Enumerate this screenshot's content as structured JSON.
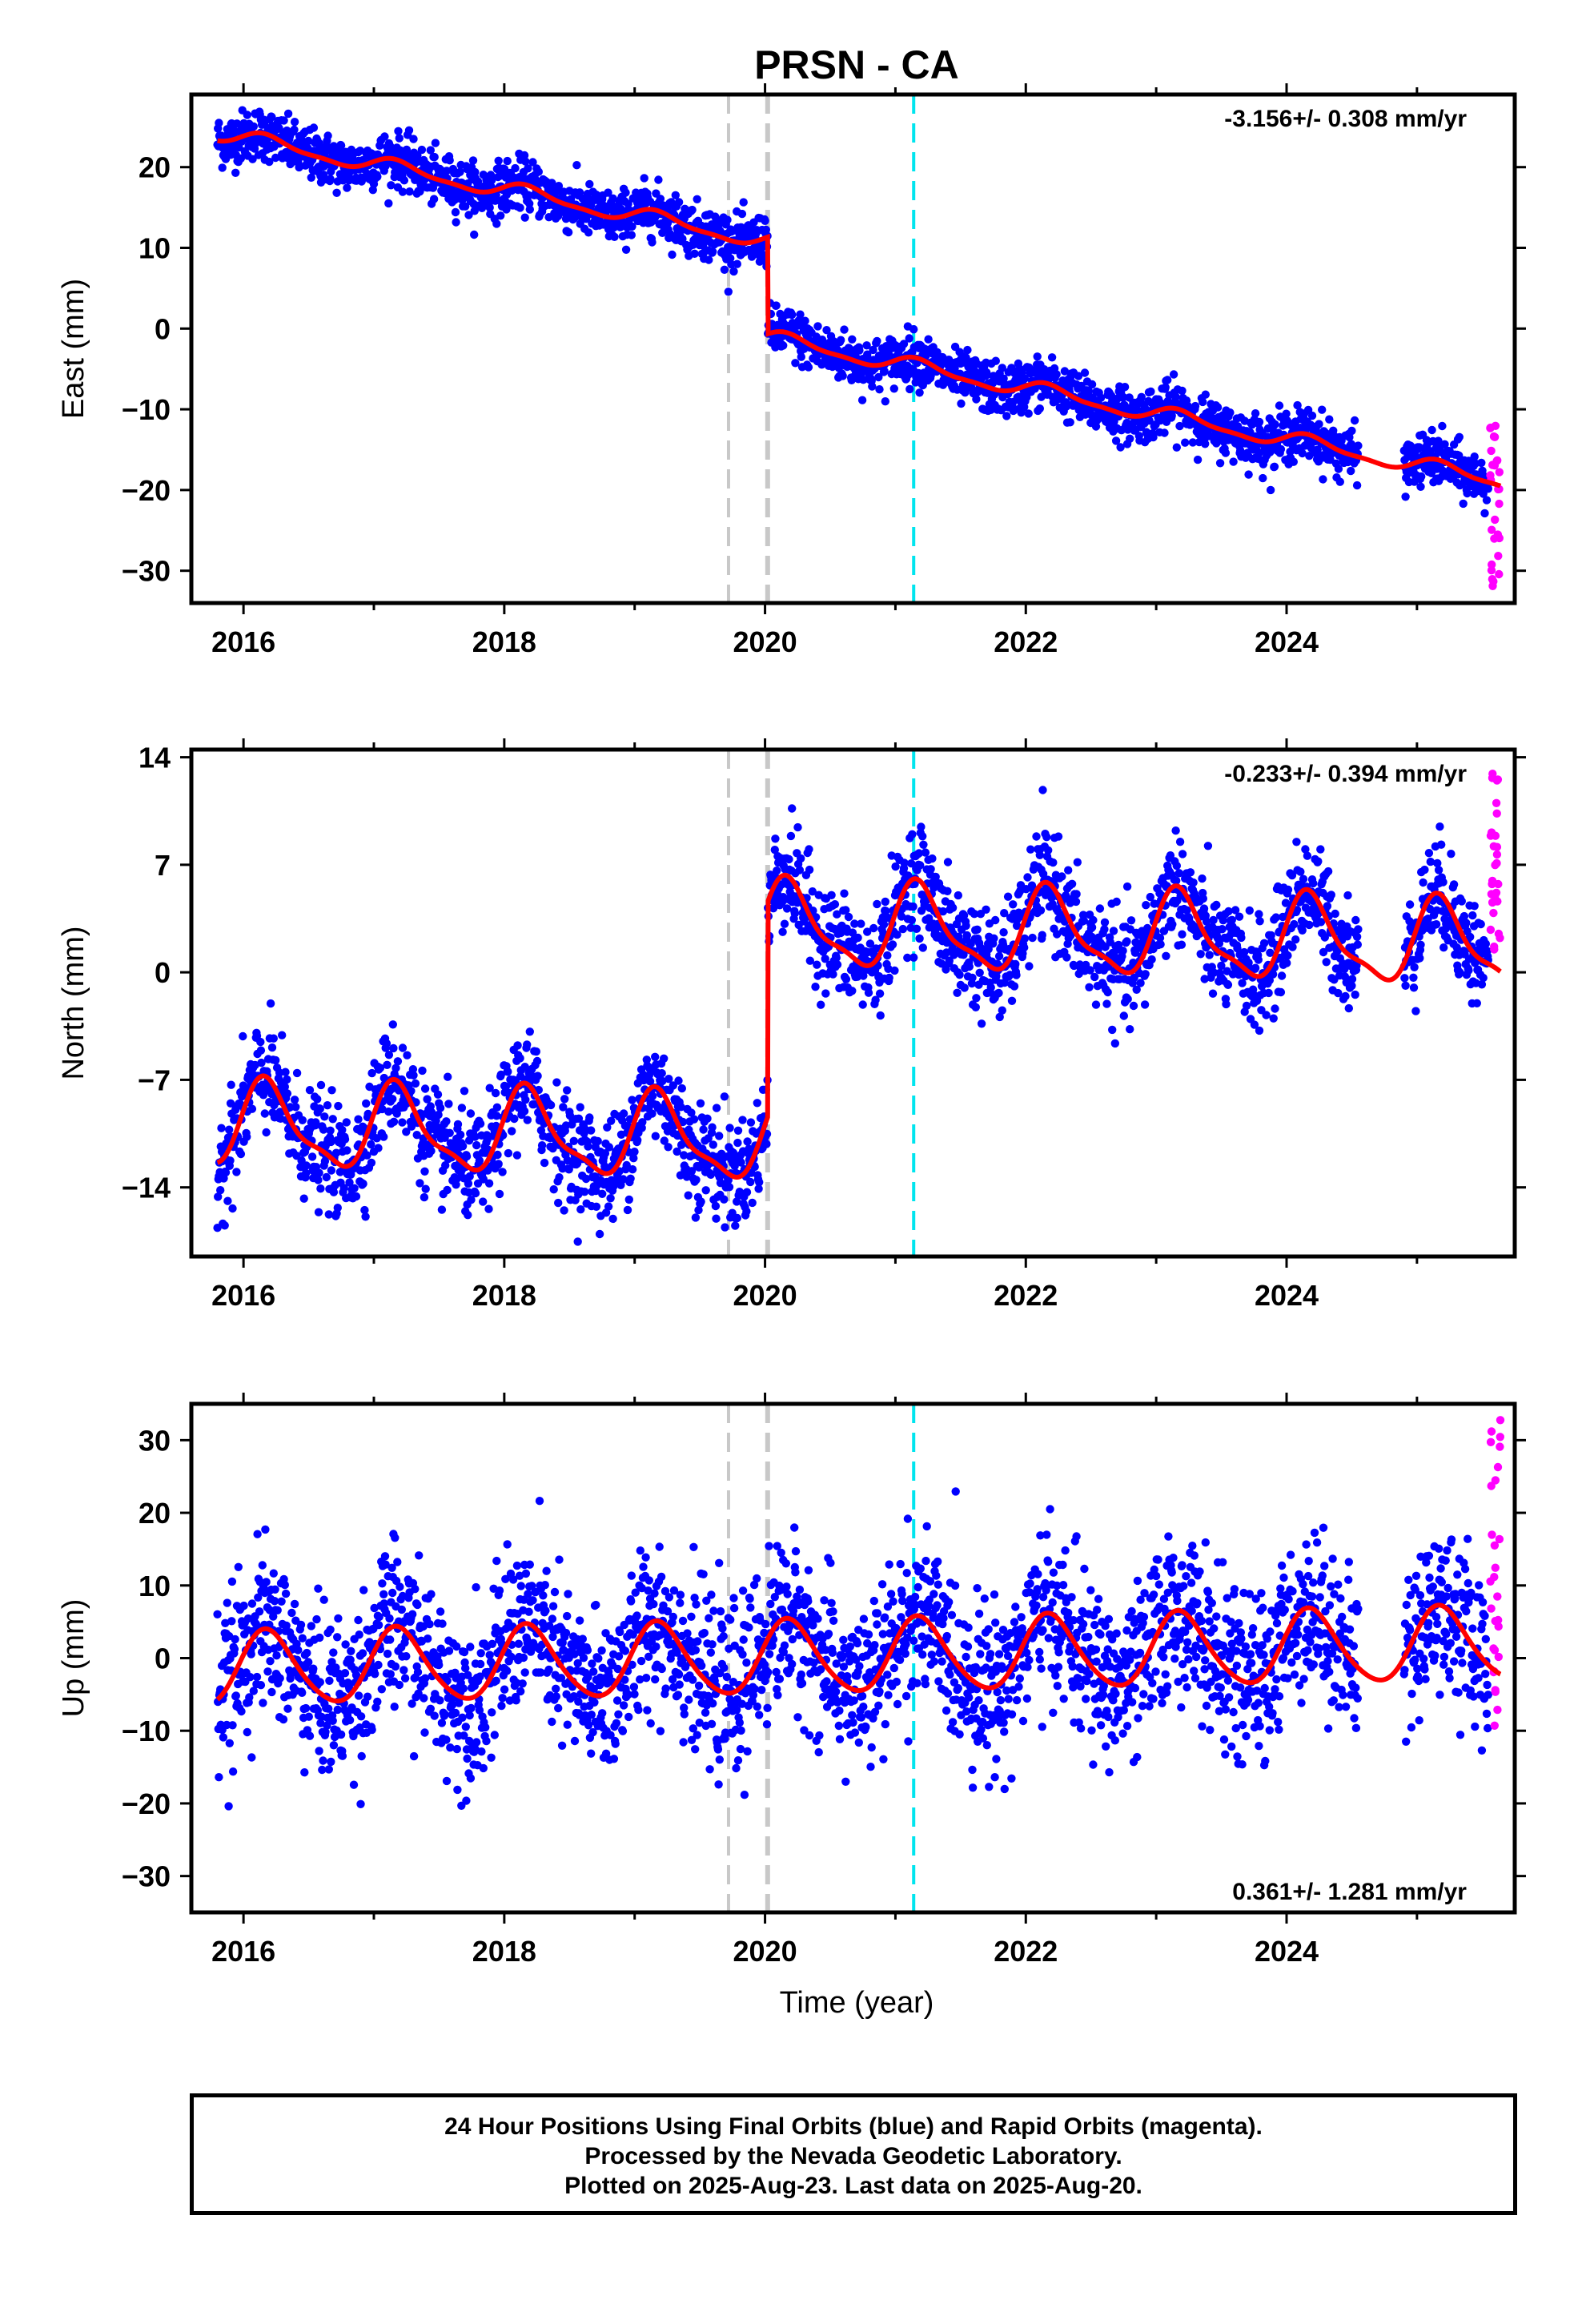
{
  "title": "PRSN - CA",
  "xlabel": "Time (year)",
  "x_ticks": [
    "2016",
    "2018",
    "2020",
    "2022",
    "2024"
  ],
  "caption_lines": [
    "24 Hour Positions Using Final Orbits (blue) and Rapid Orbits (magenta).",
    "Processed by the Nevada Geodetic Laboratory.",
    "Plotted on 2025-Aug-23. Last data on 2025-Aug-20."
  ],
  "colors": {
    "final": "#0000ff",
    "rapid": "#ff00ff",
    "model": "#ff0000",
    "offset_equipment": "#c8c8c8",
    "offset_earthquake": "#00e5ee"
  },
  "chart_data": [
    {
      "type": "scatter",
      "component": "east",
      "ylabel": "East (mm)",
      "rate_label": "-3.156+/- 0.308 mm/yr",
      "xlim": [
        2015.6,
        2025.75
      ],
      "ylim": [
        -34,
        29
      ],
      "y_ticks": [
        "20",
        "10",
        "0",
        "−10",
        "−20",
        "−30"
      ],
      "y_tick_values": [
        20,
        10,
        0,
        -10,
        -20,
        -30
      ],
      "offset_lines": [
        {
          "x": 2019.72,
          "kind": "equipment"
        },
        {
          "x": 2020.02,
          "kind": "equipment"
        },
        {
          "x": 2021.14,
          "kind": "earthquake"
        }
      ],
      "series": [
        {
          "name": "Final Orbits",
          "points": "final",
          "x_start": 2015.8,
          "x_end": 2025.55,
          "spread": 1.6
        },
        {
          "name": "Rapid Orbits",
          "points": "rapid",
          "x_start": 2025.56,
          "x_end": 2025.64,
          "y_range": [
            -32,
            -12
          ]
        }
      ],
      "model": {
        "rate_mm_yr": -3.156,
        "intercept_2016": 23.5,
        "steps": [
          {
            "x": 2020.02,
            "size": -12.0
          }
        ],
        "annual_amp": 0.9,
        "semiannual_amp": 0.3
      }
    },
    {
      "type": "scatter",
      "component": "north",
      "ylabel": "North (mm)",
      "rate_label": "-0.233+/- 0.394 mm/yr",
      "xlim": [
        2015.6,
        2025.75
      ],
      "ylim": [
        -18.5,
        14.5
      ],
      "y_ticks": [
        "14",
        "7",
        "0",
        "−7",
        "−14"
      ],
      "y_tick_values": [
        14,
        7,
        0,
        -7,
        -14
      ],
      "offset_lines": [
        {
          "x": 2019.72,
          "kind": "equipment"
        },
        {
          "x": 2020.02,
          "kind": "equipment"
        },
        {
          "x": 2021.14,
          "kind": "earthquake"
        }
      ],
      "series": [
        {
          "name": "Final Orbits",
          "points": "final",
          "x_start": 2015.8,
          "x_end": 2025.55,
          "spread": 1.7
        },
        {
          "name": "Rapid Orbits",
          "points": "rapid",
          "x_start": 2025.56,
          "x_end": 2025.64,
          "y_range": [
            1,
            13
          ]
        }
      ],
      "model": {
        "rate_mm_yr": -0.233,
        "intercept_2016": -10.0,
        "steps": [
          {
            "x": 2020.02,
            "size": 14.0
          }
        ],
        "annual_amp": 2.6,
        "semiannual_amp": 0.8
      }
    },
    {
      "type": "scatter",
      "component": "up",
      "ylabel": "Up (mm)",
      "rate_label": "0.361+/- 1.281 mm/yr",
      "xlim": [
        2015.6,
        2025.75
      ],
      "ylim": [
        -35,
        35
      ],
      "y_ticks": [
        "30",
        "20",
        "10",
        "0",
        "−10",
        "−20",
        "−30"
      ],
      "y_tick_values": [
        30,
        20,
        10,
        0,
        -10,
        -20,
        -30
      ],
      "offset_lines": [
        {
          "x": 2019.72,
          "kind": "equipment"
        },
        {
          "x": 2020.02,
          "kind": "equipment"
        },
        {
          "x": 2021.14,
          "kind": "earthquake"
        }
      ],
      "series": [
        {
          "name": "Final Orbits",
          "points": "final",
          "x_start": 2015.8,
          "x_end": 2025.55,
          "spread": 5.5
        },
        {
          "name": "Rapid Orbits",
          "points": "rapid",
          "x_start": 2025.56,
          "x_end": 2025.64,
          "y_range": [
            -11,
            33
          ]
        }
      ],
      "model": {
        "rate_mm_yr": 0.361,
        "intercept_2016": -1.5,
        "steps": [],
        "annual_amp": 5.0,
        "semiannual_amp": 0.6
      }
    }
  ]
}
